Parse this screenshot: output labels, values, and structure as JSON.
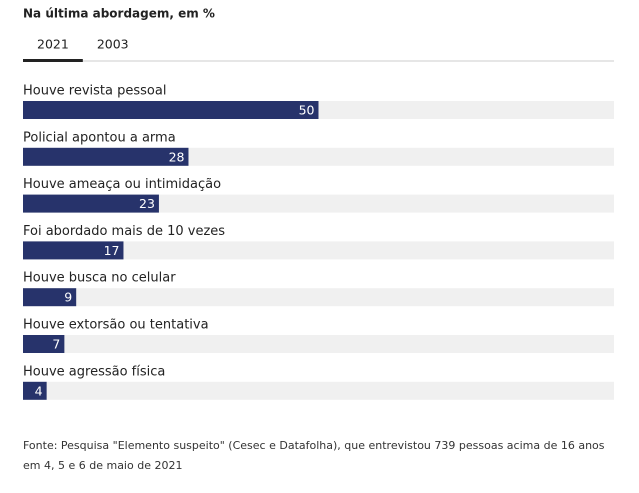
{
  "chart_data": {
    "type": "bar",
    "orientation": "horizontal",
    "title": "Na última abordagem, em %",
    "tabs": [
      "2021",
      "2003"
    ],
    "categories": [
      "Houve revista pessoal",
      "Policial apontou a arma",
      "Houve ameaça ou intimidação",
      "Foi abordado mais de 10 vezes",
      "Houve busca no celular",
      "Houve extorsão ou tentativa",
      "Houve agressão física"
    ],
    "values": [
      50,
      28,
      23,
      17,
      9,
      7,
      4
    ],
    "color": "#27336b",
    "track_color": "#f0f0f0",
    "xlim": [
      0,
      100
    ],
    "source": "Fonte: Pesquisa \"Elemento suspeito\" (Cesec e Datafolha), que entrevistou 739 pessoas acima de 16 anos em 4, 5 e 6 de maio de 2021"
  }
}
